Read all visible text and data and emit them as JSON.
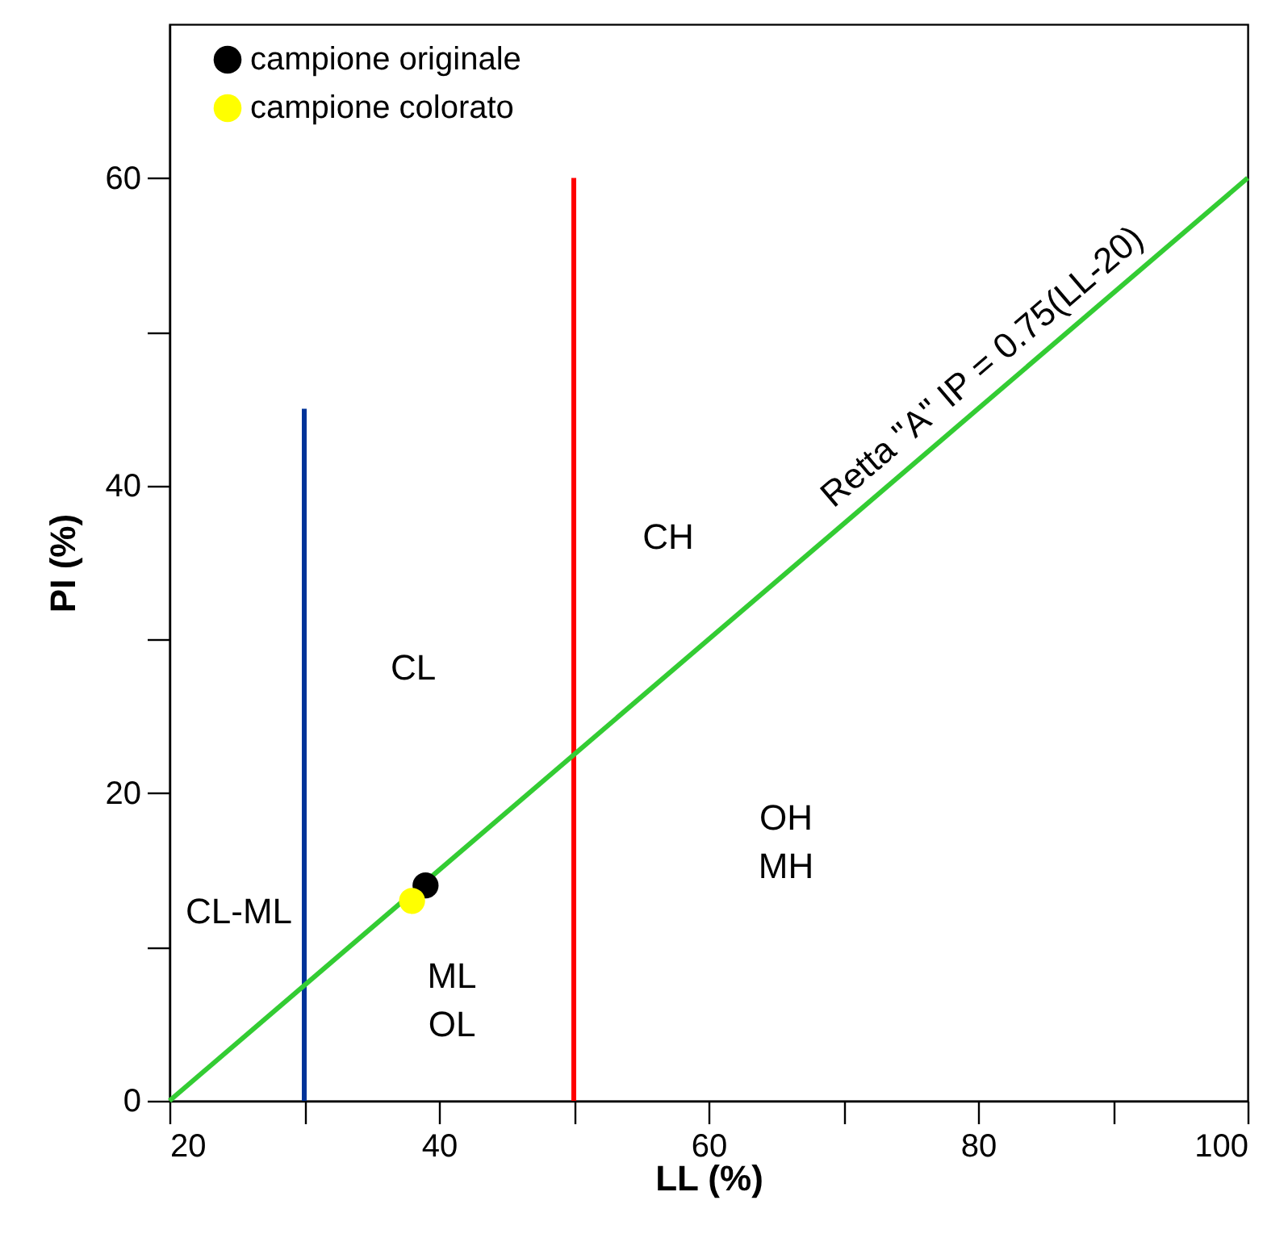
{
  "chart_data": {
    "type": "scatter",
    "xlabel": "LL (%)",
    "ylabel": "PI (%)",
    "xlim": [
      20,
      100
    ],
    "ylim": [
      0,
      70
    ],
    "xticks": [
      20,
      {
        "value": 30,
        "label": null
      },
      40,
      {
        "value": 50,
        "label": null
      },
      60,
      {
        "value": 70,
        "label": null
      },
      80,
      {
        "value": 90,
        "label": null
      },
      100
    ],
    "yticks": [
      0,
      {
        "value": 10,
        "label": null
      },
      20,
      {
        "value": 30,
        "label": null
      },
      40,
      {
        "value": 50,
        "label": null
      },
      60
    ],
    "grid": false,
    "legend": "top left",
    "series": [
      {
        "type": "line",
        "color": "#003399",
        "x": [
          30,
          30
        ],
        "values": [
          0,
          45
        ]
      },
      {
        "type": "line",
        "color": "#ff0000",
        "x": [
          50,
          50
        ],
        "values": [
          0,
          60
        ]
      },
      {
        "type": "line",
        "color": "#33cc33",
        "x": [
          20,
          100
        ],
        "values": [
          0,
          60
        ]
      },
      {
        "name": "campione originale",
        "color": "#000000",
        "marker": "circle",
        "x": [
          39
        ],
        "values": [
          14
        ]
      },
      {
        "name": "campione colorato",
        "color": "#ffff00",
        "marker": "circle",
        "x": [
          38
        ],
        "values": [
          13
        ]
      }
    ],
    "annotations": [
      "CL-ML",
      "CL",
      "CH",
      "OH\nMH",
      "ML\nOL",
      {
        "text": "Retta \"A\"   IP = 0.75(LL-20)",
        "x": 81.7,
        "y": 46.3
      }
    ]
  }
}
